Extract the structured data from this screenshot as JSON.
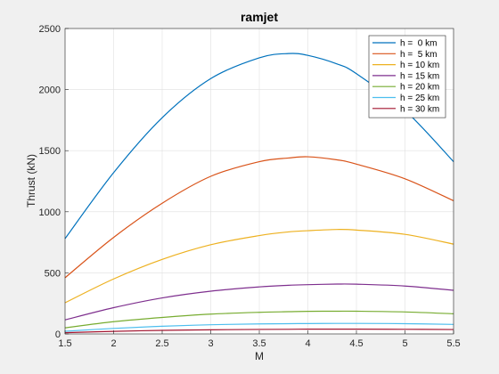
{
  "chart_data": {
    "type": "line",
    "title": "ramjet",
    "xlabel": "M",
    "ylabel": "Thrust (kN)",
    "xlim": [
      1.5,
      5.5
    ],
    "ylim": [
      0,
      2500
    ],
    "xticks": [
      1.5,
      2,
      2.5,
      3,
      3.5,
      4,
      4.5,
      5,
      5.5
    ],
    "yticks": [
      0,
      500,
      1000,
      1500,
      2000,
      2500
    ],
    "grid": true,
    "legend_position": "top-right",
    "x": [
      1.5,
      2.0,
      2.5,
      3.0,
      3.5,
      3.8,
      4.0,
      4.3,
      4.5,
      5.0,
      5.5
    ],
    "series": [
      {
        "name": "h =  0 km",
        "color": "#0072BD",
        "values": [
          780,
          1320,
          1770,
          2090,
          2260,
          2295,
          2280,
          2210,
          2130,
          1830,
          1410
        ]
      },
      {
        "name": "h =  5 km",
        "color": "#D95319",
        "values": [
          460,
          790,
          1070,
          1290,
          1410,
          1440,
          1450,
          1425,
          1390,
          1270,
          1090
        ]
      },
      {
        "name": "h = 10 km",
        "color": "#EDB120",
        "values": [
          255,
          450,
          610,
          730,
          805,
          835,
          845,
          855,
          850,
          815,
          735
        ]
      },
      {
        "name": "h = 15 km",
        "color": "#7E2F8E",
        "values": [
          115,
          215,
          295,
          350,
          385,
          398,
          403,
          408,
          407,
          392,
          357
        ]
      },
      {
        "name": "h = 20 km",
        "color": "#77AC30",
        "values": [
          50,
          100,
          135,
          162,
          177,
          182,
          185,
          186,
          186,
          180,
          165
        ]
      },
      {
        "name": "h = 25 km",
        "color": "#4DBEEE",
        "values": [
          22,
          45,
          63,
          75,
          82,
          84,
          85,
          86,
          86,
          84,
          78
        ]
      },
      {
        "name": "h = 30 km",
        "color": "#A2142F",
        "values": [
          10,
          21,
          29,
          34,
          37,
          38,
          39,
          39,
          39,
          38,
          36
        ]
      }
    ]
  }
}
